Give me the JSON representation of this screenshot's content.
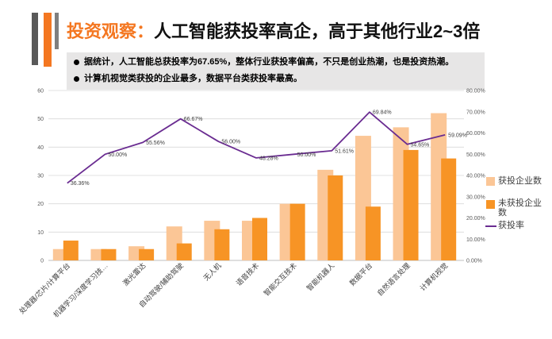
{
  "slide": {
    "title_highlight": "投资观察：",
    "title_main": "人工智能获投率高企，高于其他行业2~3倍",
    "bullets": [
      "据统计，人工智能总获投率为67.65%，整体行业获投率偏高，不只是创业热潮，也是投资热潮。",
      "计算机视觉类获投的企业最多，数据平台类获投率最高。"
    ]
  },
  "colors": {
    "accent": "#F47721",
    "stripe_dark": "#595959",
    "stripe_light": "#7F7F7F",
    "panel_bg": "#E7E6E6",
    "grid": "#D9D9D9"
  },
  "chart_data": {
    "type": "bar",
    "categories": [
      "处理器/芯片/计算平台",
      "机器学习/深度学习技…",
      "激光雷达",
      "自动驾驶/辅助驾驶",
      "无人机",
      "语音技术",
      "智能交互技术",
      "智能机器人",
      "数据平台",
      "自然语言处理",
      "计算机视觉"
    ],
    "series": [
      {
        "name": "获投企业数",
        "type": "bar",
        "color": "#FBC696",
        "values": [
          4,
          4,
          5,
          12,
          14,
          14,
          20,
          32,
          44,
          47,
          52
        ]
      },
      {
        "name": "未获投企业数",
        "type": "bar",
        "color": "#F79425",
        "values": [
          7,
          4,
          4,
          6,
          11,
          15,
          20,
          30,
          19,
          39,
          36
        ]
      },
      {
        "name": "获投率",
        "type": "line",
        "secondary_axis": true,
        "color": "#6A2C91",
        "values": [
          36.36,
          50.0,
          55.56,
          66.67,
          56.0,
          48.28,
          50.0,
          51.61,
          69.84,
          54.65,
          59.09
        ],
        "data_labels": [
          "36.36%",
          "50.00%",
          "55.56%",
          "66.67%",
          "56.00%",
          "48.28%",
          "50.00%",
          "51.61%",
          "69.84%",
          "54.65%",
          "59.09%"
        ]
      }
    ],
    "ylim": [
      0,
      60
    ],
    "yticks": [
      0,
      10,
      20,
      30,
      40,
      50,
      60
    ],
    "y2lim": [
      0,
      80
    ],
    "y2ticks": [
      0,
      10,
      20,
      30,
      40,
      50,
      60,
      70,
      80
    ],
    "y2tick_labels": [
      "0.00%",
      "10.00%",
      "20.00%",
      "30.00%",
      "40.00%",
      "50.00%",
      "60.00%",
      "70.00%",
      "80.00%"
    ],
    "grid": true,
    "legend": "right"
  }
}
